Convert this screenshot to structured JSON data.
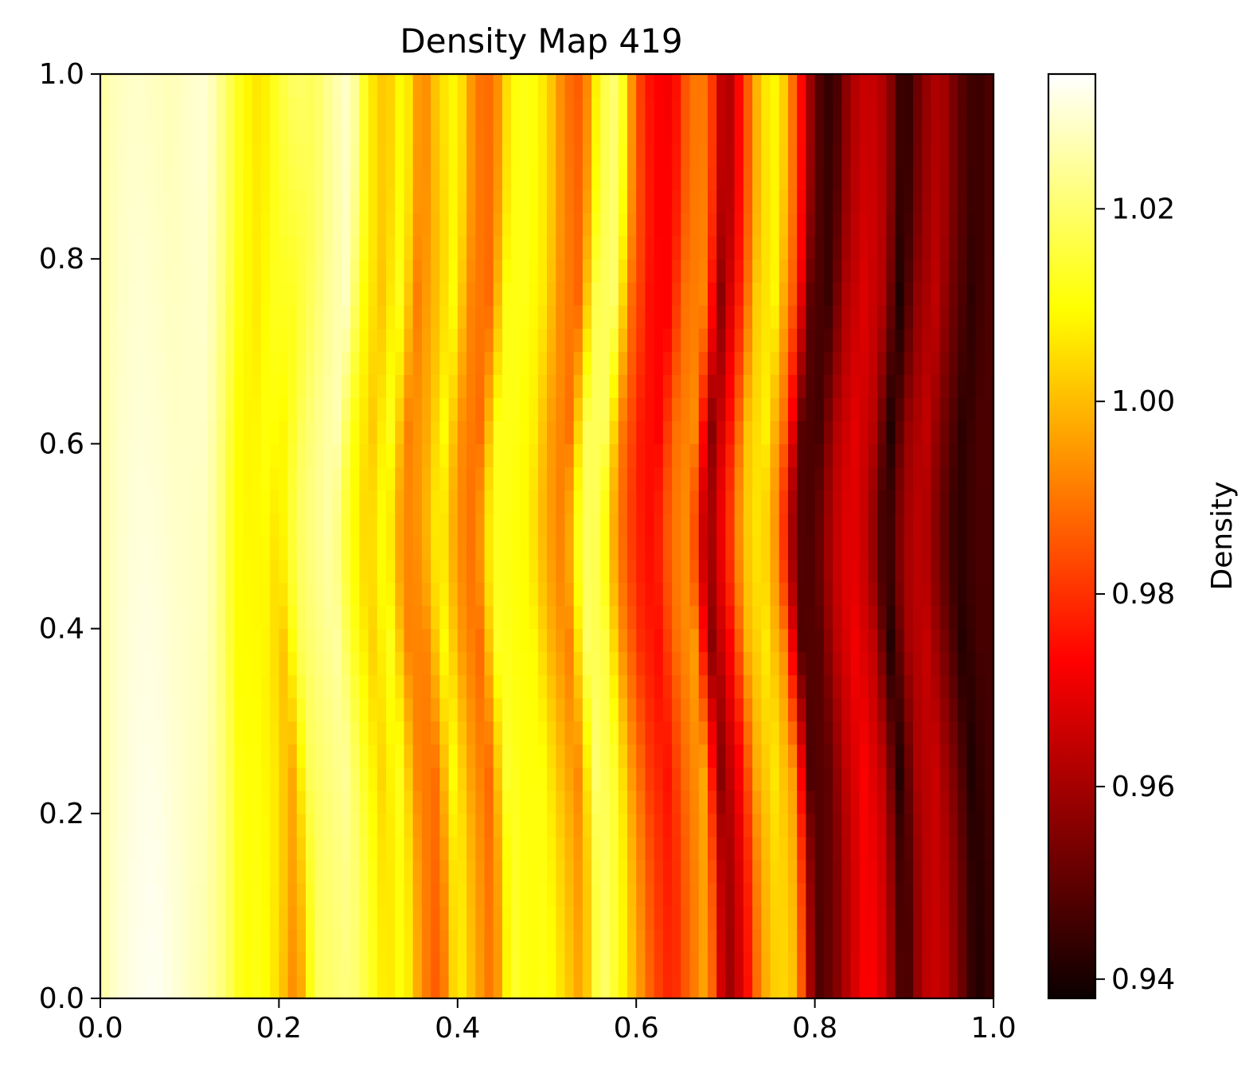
{
  "chart_data": {
    "type": "heatmap",
    "title": "Density Map 419",
    "xlabel": "",
    "ylabel": "",
    "xlim": [
      0.0,
      1.0
    ],
    "ylim": [
      0.0,
      1.0
    ],
    "x_ticks": [
      "0.0",
      "0.2",
      "0.4",
      "0.6",
      "0.8",
      "1.0"
    ],
    "y_ticks": [
      "0.0",
      "0.2",
      "0.4",
      "0.6",
      "0.8",
      "1.0"
    ],
    "grid": false,
    "colormap": "hot",
    "colorbar": {
      "label": "Density",
      "range": [
        0.938,
        1.034
      ],
      "ticks": [
        "0.94",
        "0.96",
        "0.98",
        "1.00",
        "1.02"
      ]
    },
    "x_samples": [
      0.0,
      0.02,
      0.04,
      0.06,
      0.08,
      0.1,
      0.12,
      0.14,
      0.16,
      0.18,
      0.2,
      0.22,
      0.24,
      0.26,
      0.28,
      0.3,
      0.32,
      0.34,
      0.36,
      0.38,
      0.4,
      0.42,
      0.44,
      0.46,
      0.48,
      0.5,
      0.52,
      0.54,
      0.56,
      0.58,
      0.6,
      0.62,
      0.64,
      0.66,
      0.68,
      0.7,
      0.72,
      0.74,
      0.76,
      0.78,
      0.8,
      0.82,
      0.84,
      0.86,
      0.88,
      0.9,
      0.92,
      0.94,
      0.96,
      0.98,
      1.0
    ],
    "density_at_y0": [
      1.025,
      1.03,
      1.032,
      1.033,
      1.031,
      1.028,
      1.026,
      1.02,
      1.01,
      1.012,
      1.004,
      0.99,
      1.018,
      1.02,
      1.022,
      1.015,
      1.005,
      1.012,
      0.993,
      0.984,
      1.01,
      0.998,
      0.988,
      1.015,
      1.01,
      1.012,
      1.004,
      0.995,
      1.022,
      1.012,
      0.998,
      0.984,
      0.977,
      0.988,
      0.999,
      0.955,
      0.968,
      0.995,
      1.005,
      1.0,
      0.946,
      0.952,
      0.964,
      0.973,
      0.965,
      0.942,
      0.962,
      0.965,
      0.955,
      0.94,
      0.945
    ],
    "density_at_y1": [
      1.025,
      1.028,
      1.029,
      1.028,
      1.027,
      1.029,
      1.03,
      1.02,
      1.01,
      1.005,
      1.015,
      1.02,
      1.018,
      1.025,
      1.03,
      1.008,
      1.0,
      1.012,
      0.99,
      1.005,
      1.01,
      0.99,
      0.988,
      1.01,
      1.012,
      1.005,
      0.99,
      0.985,
      1.015,
      1.022,
      0.985,
      0.972,
      0.97,
      0.99,
      0.99,
      0.955,
      0.98,
      1.005,
      1.01,
      0.982,
      0.95,
      0.942,
      0.96,
      0.965,
      0.96,
      0.94,
      0.955,
      0.962,
      0.95,
      0.944,
      0.948
    ],
    "center_bulge": {
      "center_y": 0.5,
      "width_y": 0.22,
      "shift_x": -0.02,
      "start_x": 0.12
    }
  }
}
